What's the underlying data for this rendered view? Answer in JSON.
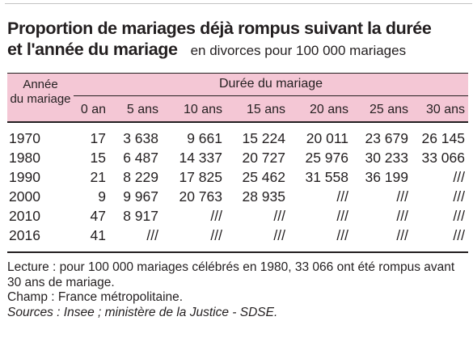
{
  "title_line1": "Proportion de mariages déjà rompus suivant la durée",
  "title_line2": "et l'année du mariage",
  "subtitle": "en divorces pour 100 000 mariages",
  "table": {
    "row_header": [
      "Année",
      "du mariage"
    ],
    "group_header": "Durée du mariage",
    "columns": [
      "0 an",
      "5 ans",
      "10 ans",
      "15 ans",
      "20 ans",
      "25 ans",
      "30 ans"
    ],
    "rows": [
      {
        "year": "1970",
        "values": [
          "17",
          "3 638",
          "9 661",
          "15 224",
          "20 011",
          "23 679",
          "26 145"
        ]
      },
      {
        "year": "1980",
        "values": [
          "15",
          "6 487",
          "14 337",
          "20 727",
          "25 976",
          "30 233",
          "33 066"
        ]
      },
      {
        "year": "1990",
        "values": [
          "21",
          "8 229",
          "17 825",
          "25 462",
          "31 558",
          "36 199",
          "///"
        ]
      },
      {
        "year": "2000",
        "values": [
          "9",
          "9 967",
          "20 763",
          "28 935",
          "///",
          "///",
          "///"
        ]
      },
      {
        "year": "2010",
        "values": [
          "47",
          "8 917",
          "///",
          "///",
          "///",
          "///",
          "///"
        ]
      },
      {
        "year": "2016",
        "values": [
          "41",
          "///",
          "///",
          "///",
          "///",
          "///",
          "///"
        ]
      }
    ]
  },
  "notes": {
    "lecture_line1": "Lecture : pour 100 000 mariages célébrés en 1980, 33 066 ont été rompus avant",
    "lecture_line2": "30 ans de mariage.",
    "champ": "Champ : France métropolitaine.",
    "sources": "Sources : Insee ; ministère de la Justice - SDSE."
  }
}
